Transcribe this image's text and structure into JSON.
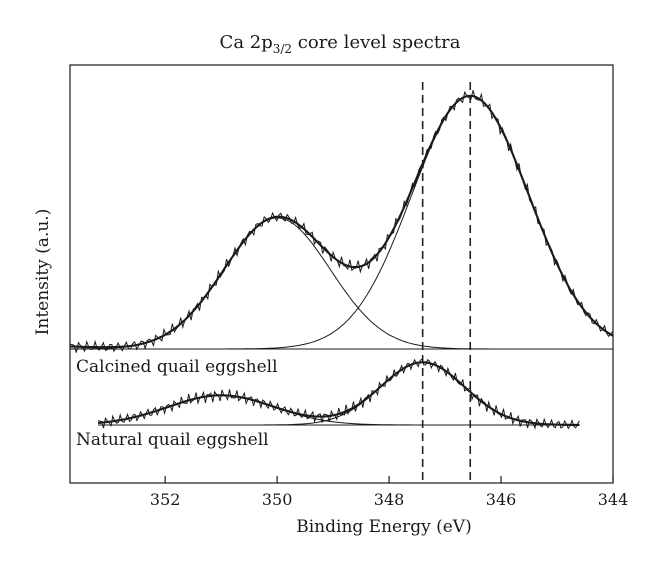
{
  "chart_data": {
    "type": "line",
    "title": "Ca 2p",
    "title_sub": "3/2",
    "title_rest": " core level spectra",
    "xlabel": "Binding Energy (eV)",
    "ylabel": "Intensity (a.u.)",
    "xlim": [
      353.7,
      344
    ],
    "x_reversed": true,
    "x_ticks": [
      "352",
      "350",
      "348",
      "346",
      "344"
    ],
    "y_ticks_labeled": false,
    "grid": false,
    "reference_lines_x": [
      347.4,
      346.55
    ],
    "series": [
      {
        "name": "Calcined quail eggshell",
        "baseline": 0.02,
        "tail_level": 0.125,
        "tail_end_x": 353.7,
        "peaks": [
          {
            "center": 350.0,
            "height": 0.57,
            "width": 0.95
          },
          {
            "center": 346.55,
            "height": 1.1,
            "width": 1.05
          }
        ],
        "x_start": 353.7,
        "x_end": 344.0
      },
      {
        "name": "Natural quail eggshell",
        "baseline": -0.3,
        "tail_level": 0.0,
        "peaks": [
          {
            "center": 351.0,
            "height": 0.135,
            "width": 0.95
          },
          {
            "center": 347.4,
            "height": 0.285,
            "width": 0.75
          }
        ],
        "x_start": 353.2,
        "x_end": 344.6
      }
    ],
    "colors": {
      "line": "#1a1a1a",
      "reference_line": "#222222"
    }
  }
}
